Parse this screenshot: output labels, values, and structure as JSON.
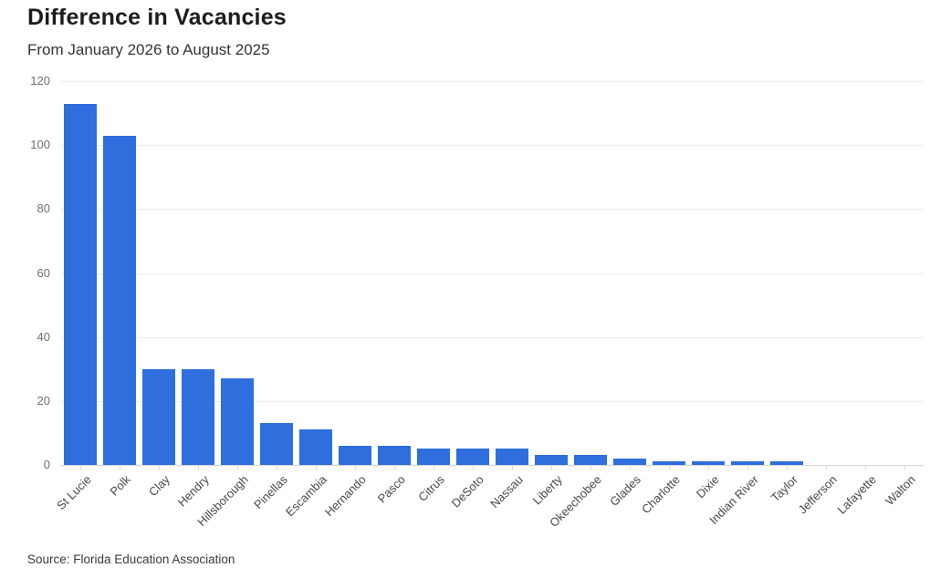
{
  "chart_data": {
    "type": "bar",
    "title": "Difference in Vacancies",
    "subtitle": "From January 2026 to August 2025",
    "source": "Source: Florida Education Association",
    "categories": [
      "St Lucie",
      "Polk",
      "Clay",
      "Hendry",
      "Hillsborough",
      "Pinellas",
      "Escambia",
      "Hernando",
      "Pasco",
      "Citrus",
      "DeSoto",
      "Nassau",
      "Liberty",
      "Okeechobee",
      "Glades",
      "Charlotte",
      "Dixie",
      "Indian River",
      "Taylor",
      "Jefferson",
      "Lafayette",
      "Walton"
    ],
    "values": [
      113,
      103,
      30,
      30,
      27,
      13,
      11,
      6,
      6,
      5,
      5,
      5,
      3,
      3,
      2,
      1,
      1,
      1,
      1,
      0,
      0,
      0
    ],
    "xlabel": "",
    "ylabel": "",
    "ylim": [
      0,
      120
    ],
    "yticks": [
      0,
      20,
      40,
      60,
      80,
      100,
      120
    ],
    "grid": "horizontal",
    "legend": "none",
    "bar_color": "#2e6edd"
  }
}
